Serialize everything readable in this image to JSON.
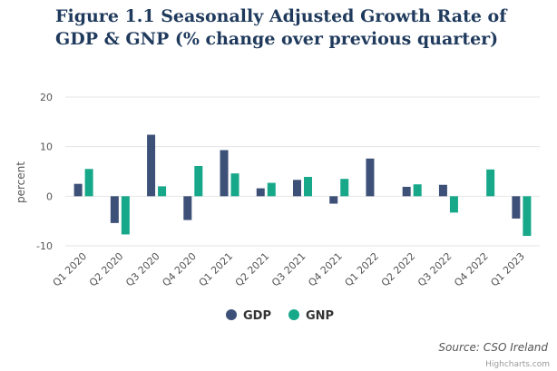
{
  "colors": {
    "gdp": "#3d5078",
    "gnp": "#17a88a",
    "grid": "#e6e6e6",
    "title": "#1f3a5c"
  },
  "chart_data": {
    "type": "bar",
    "title": "Figure 1.1 Seasonally Adjusted Growth Rate of GDP & GNP (% change over previous quarter)",
    "ylabel": "percent",
    "xlabel": "",
    "ylim": [
      -10,
      20
    ],
    "yticks": [
      20,
      10,
      0,
      -10
    ],
    "grid": true,
    "legend_placement": "bottom-center",
    "categories": [
      "Q1 2020",
      "Q2 2020",
      "Q3 2020",
      "Q4 2020",
      "Q1 2021",
      "Q2 2021",
      "Q3 2021",
      "Q4 2021",
      "Q1 2022",
      "Q2 2022",
      "Q3 2022",
      "Q4 2022",
      "Q1 2023"
    ],
    "series": [
      {
        "name": "GDP",
        "values": [
          2.5,
          -5.4,
          12.4,
          -4.8,
          9.3,
          1.6,
          3.3,
          -1.5,
          7.6,
          1.9,
          2.3,
          0.0,
          -4.5
        ]
      },
      {
        "name": "GNP",
        "values": [
          5.5,
          -7.7,
          2.0,
          6.1,
          4.6,
          2.7,
          3.9,
          3.5,
          0.0,
          2.4,
          -3.3,
          5.4,
          -8.0
        ]
      }
    ],
    "source": "Source: CSO Ireland",
    "credit": "Highcharts.com"
  }
}
